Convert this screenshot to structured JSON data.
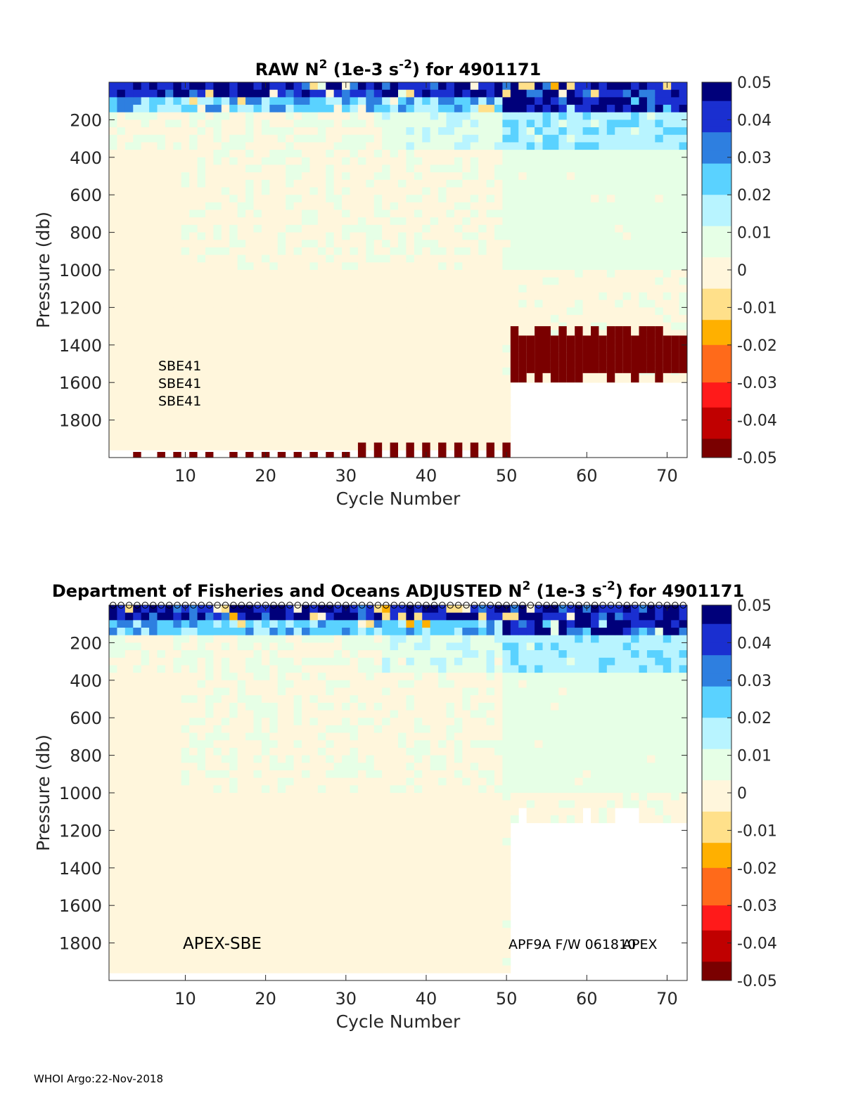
{
  "footer": "WHOI Argo:22-Nov-2018",
  "colors": {
    "colormap": [
      "#7a0000",
      "#c00000",
      "#ff1a1a",
      "#ff6a1a",
      "#ffb000",
      "#ffe08a",
      "#fff6dc",
      "#e6ffe6",
      "#b8f4ff",
      "#5ad2ff",
      "#2e7fe0",
      "#1a2fd0",
      "#00007a"
    ],
    "deep_red": "#7a0000",
    "background_field": "#e6ffe6"
  },
  "chart_data": [
    {
      "id": "raw",
      "type": "heatmap",
      "title": "RAW N² (1e-3 s⁻²) for 4901171",
      "title_parts": {
        "prefix": "RAW N",
        "sup1": "2",
        "mid": " (1e-3 s",
        "sup2": "-2",
        "suffix": ") for 4901171"
      },
      "xlabel": "Cycle Number",
      "ylabel": "Pressure (db)",
      "xlim": [
        1,
        72
      ],
      "ylim": [
        2000,
        0
      ],
      "xticks": [
        10,
        20,
        30,
        40,
        50,
        60,
        70
      ],
      "yticks": [
        200,
        400,
        600,
        800,
        1000,
        1200,
        1400,
        1600,
        1800
      ],
      "colorbar": {
        "range": [
          -0.05,
          0.05
        ],
        "ticks": [
          "0.05",
          "0.04",
          "0.03",
          "0.02",
          "0.01",
          "0",
          "-0.01",
          "-0.02",
          "-0.03",
          "-0.04",
          "-0.05"
        ]
      },
      "annotations": [
        "SBE41",
        "SBE41",
        "SBE41"
      ],
      "profile_depth_cycles_1_50": 1950,
      "profile_depth_cycles_51_72": 1600,
      "deep_negative_band": [
        1350,
        1550
      ],
      "bottom_negative_markers": [
        {
          "cycle": 4,
          "pressure": 1970
        },
        {
          "cycle": 7,
          "pressure": 1970
        },
        {
          "cycle": 9,
          "pressure": 1970
        },
        {
          "cycle": 11,
          "pressure": 1970
        },
        {
          "cycle": 13,
          "pressure": 1970
        },
        {
          "cycle": 16,
          "pressure": 1970
        },
        {
          "cycle": 18,
          "pressure": 1970
        },
        {
          "cycle": 20,
          "pressure": 1970
        },
        {
          "cycle": 22,
          "pressure": 1970
        },
        {
          "cycle": 24,
          "pressure": 1970
        },
        {
          "cycle": 26,
          "pressure": 1970
        },
        {
          "cycle": 28,
          "pressure": 1970
        },
        {
          "cycle": 30,
          "pressure": 1970
        },
        {
          "cycle": 32,
          "pressure": 1920
        },
        {
          "cycle": 34,
          "pressure": 1920
        },
        {
          "cycle": 36,
          "pressure": 1920
        },
        {
          "cycle": 38,
          "pressure": 1920
        },
        {
          "cycle": 40,
          "pressure": 1920
        },
        {
          "cycle": 42,
          "pressure": 1920
        },
        {
          "cycle": 44,
          "pressure": 1920
        },
        {
          "cycle": 46,
          "pressure": 1920
        },
        {
          "cycle": 48,
          "pressure": 1920
        },
        {
          "cycle": 50,
          "pressure": 1920
        }
      ]
    },
    {
      "id": "adjusted",
      "type": "heatmap",
      "title": "Department of Fisheries and Oceans  ADJUSTED N² (1e-3 s⁻²) for 4901171",
      "title_parts": {
        "prefix": "Department of Fisheries and Oceans  ADJUSTED N",
        "sup1": "2",
        "mid": " (1e-3 s",
        "sup2": "-2",
        "suffix": ") for 4901171"
      },
      "xlabel": "Cycle Number",
      "ylabel": "Pressure (db)",
      "xlim": [
        1,
        72
      ],
      "ylim": [
        2000,
        0
      ],
      "xticks": [
        10,
        20,
        30,
        40,
        50,
        60,
        70
      ],
      "yticks": [
        200,
        400,
        600,
        800,
        1000,
        1200,
        1400,
        1600,
        1800
      ],
      "colorbar": {
        "range": [
          -0.05,
          0.05
        ],
        "ticks": [
          "0.05",
          "0.04",
          "0.03",
          "0.02",
          "0.01",
          "0",
          "-0.01",
          "-0.02",
          "-0.03",
          "-0.04",
          "-0.05"
        ]
      },
      "annotations": [
        "APEX-SBE",
        "APF9A F/W 061810",
        "APEX"
      ],
      "profile_depth_cycles_1_50": 1950,
      "profile_depth_cycles_51_72": 1150,
      "surface_markers": "o at every cycle 1-72"
    }
  ]
}
